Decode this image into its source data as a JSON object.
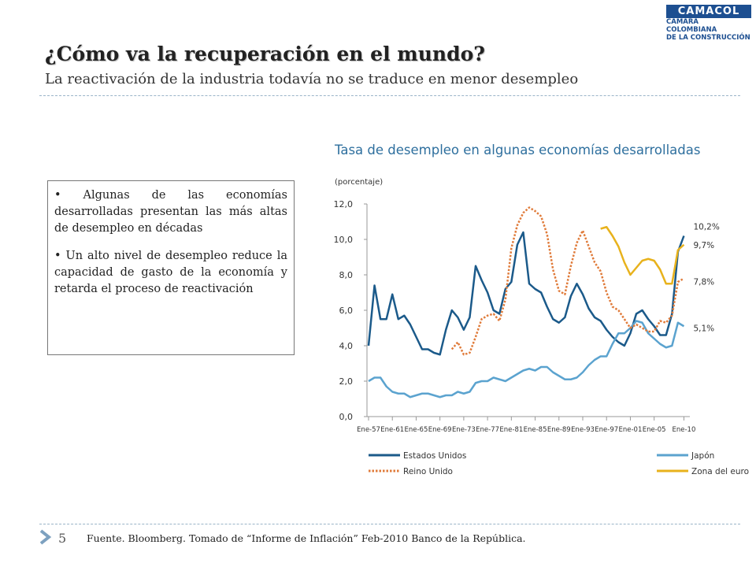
{
  "header": {
    "title": "¿Cómo va la recuperación en el mundo?",
    "subtitle": "La reactivación de la industria todavía no se traduce en menor desempleo",
    "logo": [
      "CAMACOL",
      "CÁMARA COLOMBIANA",
      "DE LA CONSTRUCCIÓN"
    ]
  },
  "bullets": [
    "Algunas de las economías desarrolladas presentan las más altas de desempleo en décadas",
    "Un alto nivel de desempleo reduce la capacidad de gasto de la economía y retarda el proceso de reactivación"
  ],
  "footer": {
    "page": "5",
    "source": "Fuente. Bloomberg. Tomado de “Informe de Inflación” Feb-2010 Banco de la República."
  },
  "chart_data": {
    "type": "line",
    "title": "Tasa de desempleo en algunas economías desarrolladas",
    "y_label": "(porcentaje)",
    "x": [
      1957,
      1958,
      1959,
      1960,
      1961,
      1962,
      1963,
      1964,
      1965,
      1966,
      1967,
      1968,
      1969,
      1970,
      1971,
      1972,
      1973,
      1974,
      1975,
      1976,
      1977,
      1978,
      1979,
      1980,
      1981,
      1982,
      1983,
      1984,
      1985,
      1986,
      1987,
      1988,
      1989,
      1990,
      1991,
      1992,
      1993,
      1994,
      1995,
      1996,
      1997,
      1998,
      1999,
      2000,
      2001,
      2002,
      2003,
      2004,
      2005,
      2006,
      2007,
      2008,
      2009,
      2010
    ],
    "series": [
      {
        "name": "Estados Unidos",
        "color": "#1b5a8a",
        "dashed": false,
        "values": [
          4.0,
          7.4,
          5.5,
          5.5,
          6.9,
          5.5,
          5.7,
          5.2,
          4.5,
          3.8,
          3.8,
          3.6,
          3.5,
          4.9,
          6.0,
          5.6,
          4.9,
          5.6,
          8.5,
          7.7,
          7.0,
          6.0,
          5.8,
          7.2,
          7.6,
          9.7,
          10.4,
          7.5,
          7.2,
          7.0,
          6.2,
          5.5,
          5.3,
          5.6,
          6.8,
          7.5,
          6.9,
          6.1,
          5.6,
          5.4,
          4.9,
          4.5,
          4.2,
          4.0,
          4.7,
          5.8,
          6.0,
          5.5,
          5.1,
          4.6,
          4.6,
          5.8,
          9.3,
          10.2
        ]
      },
      {
        "name": "Japón",
        "color": "#5ba3cf",
        "dashed": false,
        "values": [
          2.0,
          2.2,
          2.2,
          1.7,
          1.4,
          1.3,
          1.3,
          1.1,
          1.2,
          1.3,
          1.3,
          1.2,
          1.1,
          1.2,
          1.2,
          1.4,
          1.3,
          1.4,
          1.9,
          2.0,
          2.0,
          2.2,
          2.1,
          2.0,
          2.2,
          2.4,
          2.6,
          2.7,
          2.6,
          2.8,
          2.8,
          2.5,
          2.3,
          2.1,
          2.1,
          2.2,
          2.5,
          2.9,
          3.2,
          3.4,
          3.4,
          4.1,
          4.7,
          4.7,
          5.0,
          5.4,
          5.3,
          4.7,
          4.4,
          4.1,
          3.9,
          4.0,
          5.3,
          5.1
        ]
      },
      {
        "name": "Reino Unido",
        "color": "#e07b3a",
        "dashed": true,
        "values": [
          null,
          null,
          null,
          null,
          null,
          null,
          null,
          null,
          null,
          null,
          null,
          null,
          null,
          null,
          3.8,
          4.2,
          3.5,
          3.6,
          4.5,
          5.5,
          5.7,
          5.8,
          5.4,
          6.6,
          9.5,
          10.8,
          11.5,
          11.8,
          11.6,
          11.3,
          10.3,
          8.3,
          7.1,
          6.9,
          8.5,
          9.8,
          10.5,
          9.6,
          8.7,
          8.2,
          7.0,
          6.2,
          6.0,
          5.5,
          5.0,
          5.2,
          5.0,
          4.8,
          4.8,
          5.4,
          5.3,
          5.7,
          7.6,
          7.8
        ]
      },
      {
        "name": "Zona del euro",
        "color": "#e8b21c",
        "dashed": false,
        "values": [
          null,
          null,
          null,
          null,
          null,
          null,
          null,
          null,
          null,
          null,
          null,
          null,
          null,
          null,
          null,
          null,
          null,
          null,
          null,
          null,
          null,
          null,
          null,
          null,
          null,
          null,
          null,
          null,
          null,
          null,
          null,
          null,
          null,
          null,
          null,
          null,
          null,
          null,
          null,
          10.6,
          10.7,
          10.2,
          9.6,
          8.7,
          8.0,
          8.4,
          8.8,
          8.9,
          8.8,
          8.3,
          7.5,
          7.5,
          9.4,
          9.7
        ]
      }
    ],
    "annotations": [
      {
        "text": "10,2%",
        "x": 2010,
        "y": 10.2
      },
      {
        "text": "9,7%",
        "x": 2010,
        "y": 9.7
      },
      {
        "text": "7,8%",
        "x": 2010,
        "y": 7.8
      },
      {
        "text": "5,1%",
        "x": 2010,
        "y": 5.1
      }
    ],
    "xlim": [
      1957,
      2011
    ],
    "xticks": [
      {
        "value": 1957,
        "label": "Ene-57"
      },
      {
        "value": 1961,
        "label": "Ene-61"
      },
      {
        "value": 1965,
        "label": "Ene-65"
      },
      {
        "value": 1969,
        "label": "Ene-69"
      },
      {
        "value": 1973,
        "label": "Ene-73"
      },
      {
        "value": 1977,
        "label": "Ene-77"
      },
      {
        "value": 1981,
        "label": "Ene-81"
      },
      {
        "value": 1985,
        "label": "Ene-85"
      },
      {
        "value": 1989,
        "label": "Ene-89"
      },
      {
        "value": 1993,
        "label": "Ene-93"
      },
      {
        "value": 1997,
        "label": "Ene-97"
      },
      {
        "value": 2001,
        "label": "Ene-01"
      },
      {
        "value": 2005,
        "label": "Ene-05"
      },
      {
        "value": 2010,
        "label": "Ene-10"
      }
    ],
    "ylim": [
      0,
      12
    ],
    "yticks": [
      {
        "value": 0,
        "label": "0,0"
      },
      {
        "value": 2,
        "label": "2,0"
      },
      {
        "value": 4,
        "label": "4,0"
      },
      {
        "value": 6,
        "label": "6,0"
      },
      {
        "value": 8,
        "label": "8,0"
      },
      {
        "value": 10,
        "label": "10,0"
      },
      {
        "value": 12,
        "label": "12,0"
      }
    ],
    "grid": false,
    "legend": "bottom"
  }
}
